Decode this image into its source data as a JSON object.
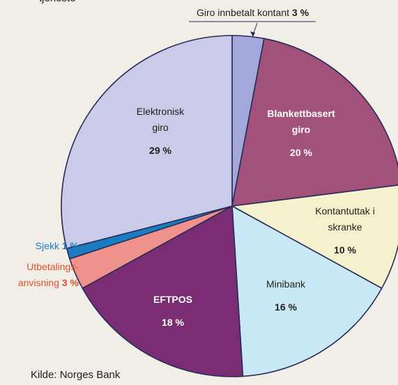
{
  "chart_data": {
    "type": "pie",
    "title": "tjeneste",
    "categories": [
      "Giro innbetalt kontant",
      "Blankettbasert\ngiro",
      "Kontantuttak i\nskranke",
      "Minibank",
      "EFTPOS",
      "Utbetalings-\nanvisning",
      "Sjekk",
      "Elektronisk\ngiro"
    ],
    "values": [
      3,
      20,
      10,
      16,
      18,
      3,
      1,
      29
    ],
    "value_labels": [
      "3 %",
      "20 %",
      "10 %",
      "16 %",
      "18 %",
      "3 %",
      "1 %",
      "29 %"
    ],
    "colors": [
      "#a3a7d9",
      "#a1517a",
      "#f6f1cd",
      "#c9e8f5",
      "#7a2d73",
      "#f0928c",
      "#1b7cc2",
      "#c9cbe9"
    ],
    "source": "Kilde: Norges Bank"
  }
}
